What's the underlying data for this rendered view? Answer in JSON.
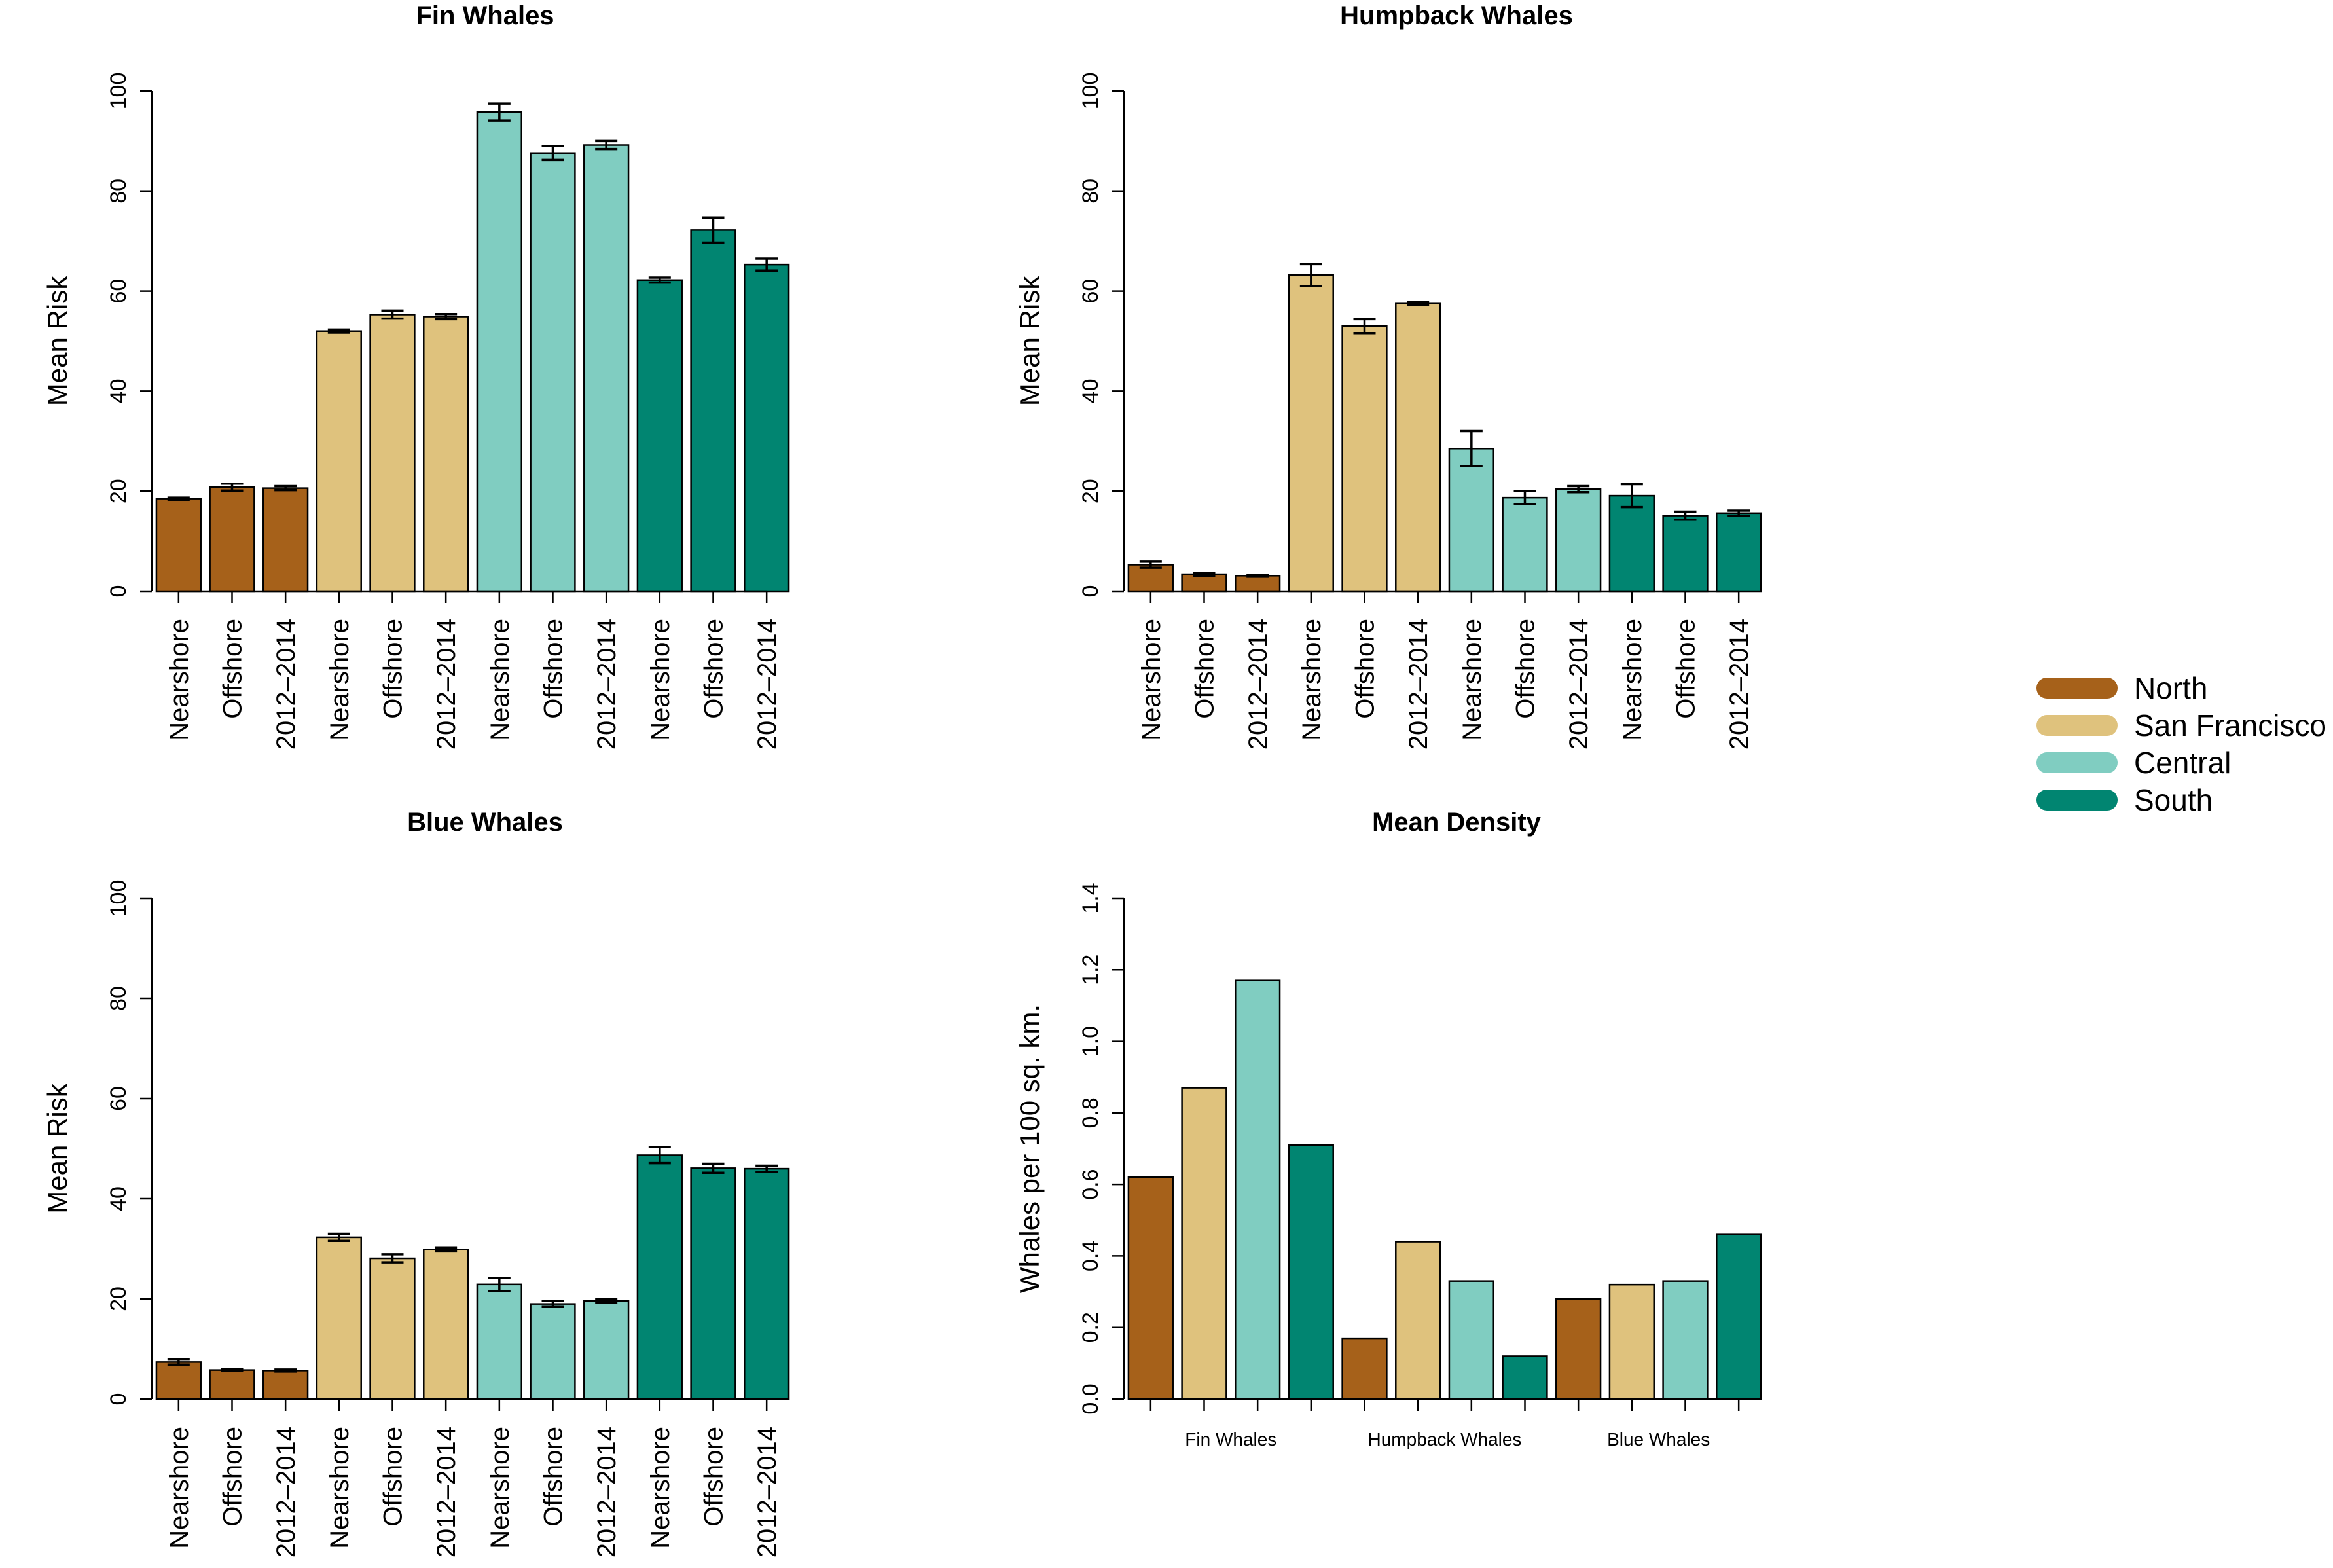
{
  "colors": {
    "North": "#a6611a",
    "San Francisco": "#dfc27d",
    "Central": "#80cdc1",
    "South": "#018571"
  },
  "legend": {
    "items": [
      {
        "label": "North",
        "color": "#a6611a"
      },
      {
        "label": "San Francisco",
        "color": "#dfc27d"
      },
      {
        "label": "Central",
        "color": "#80cdc1"
      },
      {
        "label": "South",
        "color": "#018571"
      }
    ]
  },
  "chart_data": [
    {
      "type": "bar",
      "title": "Fin Whales",
      "ylabel": "Mean Risk",
      "xlabel": "",
      "ylim": [
        0,
        100
      ],
      "yticks": [
        "0",
        "20",
        "40",
        "60",
        "80",
        "100"
      ],
      "categories": [
        "Nearshore",
        "Offshore",
        "2012–2014",
        "Nearshore",
        "Offshore",
        "2012–2014",
        "Nearshore",
        "Offshore",
        "2012–2014",
        "Nearshore",
        "Offshore",
        "2012–2014"
      ],
      "regions": [
        "North",
        "North",
        "North",
        "San Francisco",
        "San Francisco",
        "San Francisco",
        "Central",
        "Central",
        "Central",
        "South",
        "South",
        "South"
      ],
      "values": [
        18.5,
        20.8,
        20.6,
        52.0,
        55.3,
        54.9,
        95.8,
        87.6,
        89.2,
        62.2,
        72.2,
        65.3
      ],
      "errors": [
        0.2,
        0.7,
        0.4,
        0.3,
        0.8,
        0.5,
        1.7,
        1.4,
        0.8,
        0.5,
        2.5,
        1.2
      ]
    },
    {
      "type": "bar",
      "title": "Humpback Whales",
      "ylabel": "Mean Risk",
      "xlabel": "",
      "ylim": [
        0,
        100
      ],
      "yticks": [
        "0",
        "20",
        "40",
        "60",
        "80",
        "100"
      ],
      "categories": [
        "Nearshore",
        "Offshore",
        "2012–2014",
        "Nearshore",
        "Offshore",
        "2012–2014",
        "Nearshore",
        "Offshore",
        "2012–2014",
        "Nearshore",
        "Offshore",
        "2012–2014"
      ],
      "regions": [
        "North",
        "North",
        "North",
        "San Francisco",
        "San Francisco",
        "San Francisco",
        "Central",
        "Central",
        "Central",
        "South",
        "South",
        "South"
      ],
      "values": [
        5.3,
        3.4,
        3.1,
        63.2,
        53.0,
        57.5,
        28.5,
        18.7,
        20.4,
        19.1,
        15.1,
        15.6
      ],
      "errors": [
        0.6,
        0.3,
        0.2,
        2.2,
        1.4,
        0.3,
        3.5,
        1.3,
        0.6,
        2.3,
        0.8,
        0.5
      ]
    },
    {
      "type": "bar",
      "title": "Blue Whales",
      "ylabel": "Mean Risk",
      "xlabel": "",
      "ylim": [
        0,
        100
      ],
      "yticks": [
        "0",
        "20",
        "40",
        "60",
        "80",
        "100"
      ],
      "categories": [
        "Nearshore",
        "Offshore",
        "2012–2014",
        "Nearshore",
        "Offshore",
        "2012–2014",
        "Nearshore",
        "Offshore",
        "2012–2014",
        "Nearshore",
        "Offshore",
        "2012–2014"
      ],
      "regions": [
        "North",
        "North",
        "North",
        "San Francisco",
        "San Francisco",
        "San Francisco",
        "Central",
        "Central",
        "Central",
        "South",
        "South",
        "South"
      ],
      "values": [
        7.4,
        5.8,
        5.7,
        32.3,
        28.1,
        29.9,
        22.9,
        19.0,
        19.6,
        48.7,
        46.1,
        46.0
      ],
      "errors": [
        0.5,
        0.2,
        0.2,
        0.7,
        0.8,
        0.4,
        1.3,
        0.6,
        0.4,
        1.6,
        0.9,
        0.6
      ]
    },
    {
      "type": "bar",
      "title": "Mean Density",
      "ylabel": "Whales per 100 sq. km.",
      "xlabel": "",
      "ylim": [
        0,
        1.4
      ],
      "yticks": [
        "0.0",
        "0.2",
        "0.4",
        "0.6",
        "0.8",
        "1.0",
        "1.2",
        "1.4"
      ],
      "groups": [
        "Fin Whales",
        "Humpback Whales",
        "Blue Whales"
      ],
      "series": [
        {
          "name": "North",
          "values": [
            0.62,
            0.17,
            0.28
          ]
        },
        {
          "name": "San Francisco",
          "values": [
            0.87,
            0.44,
            0.32
          ]
        },
        {
          "name": "Central",
          "values": [
            1.17,
            0.33,
            0.33
          ]
        },
        {
          "name": "South",
          "values": [
            0.71,
            0.12,
            0.46
          ]
        }
      ]
    }
  ]
}
